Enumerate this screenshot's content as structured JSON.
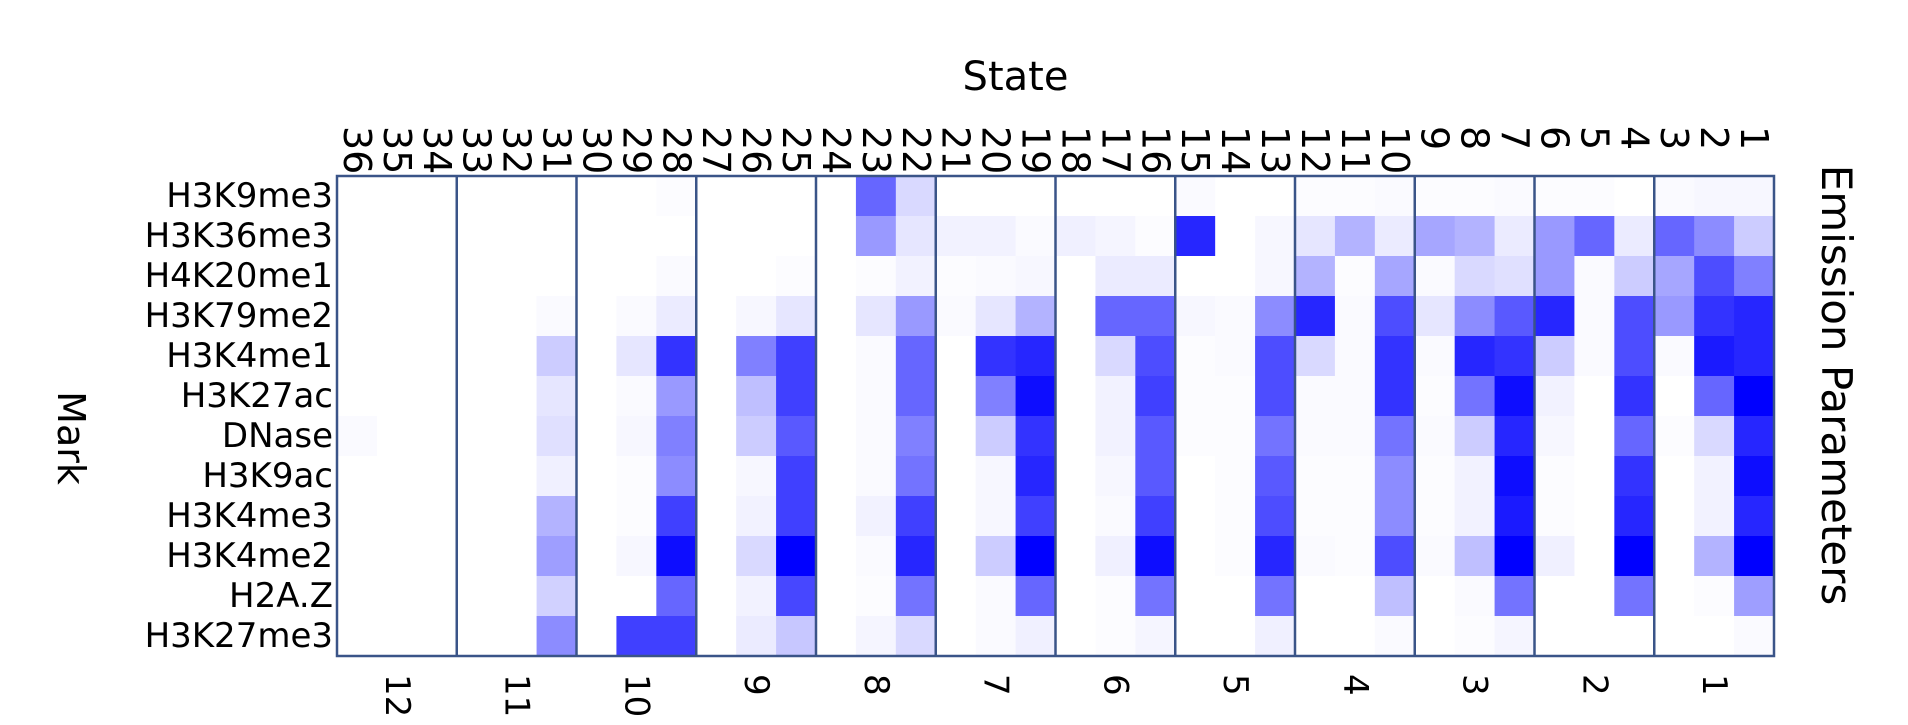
{
  "chart_data": {
    "type": "heatmap",
    "title": "Emission Parameters",
    "xlabel": "State",
    "ylabel": "Mark",
    "marks": [
      "H3K9me3",
      "H3K36me3",
      "H4K20me1",
      "H3K79me2",
      "H3K4me1",
      "H3K27ac",
      "DNase",
      "H3K9ac",
      "H3K4me3",
      "H3K4me2",
      "H2A.Z",
      "H3K27me3"
    ],
    "states": [
      36,
      35,
      34,
      33,
      32,
      31,
      30,
      29,
      28,
      27,
      26,
      25,
      24,
      23,
      22,
      21,
      20,
      19,
      18,
      17,
      16,
      15,
      14,
      13,
      12,
      11,
      10,
      9,
      8,
      7,
      6,
      5,
      4,
      3,
      2,
      1
    ],
    "groups": [
      {
        "label": "12",
        "states": [
          36,
          35,
          34
        ]
      },
      {
        "label": "11",
        "states": [
          33,
          32,
          31
        ]
      },
      {
        "label": "10",
        "states": [
          30,
          29,
          28
        ]
      },
      {
        "label": "9",
        "states": [
          27,
          26,
          25
        ]
      },
      {
        "label": "8",
        "states": [
          24,
          23,
          22
        ]
      },
      {
        "label": "7",
        "states": [
          21,
          20,
          19
        ]
      },
      {
        "label": "6",
        "states": [
          18,
          17,
          16
        ]
      },
      {
        "label": "5",
        "states": [
          15,
          14,
          13
        ]
      },
      {
        "label": "4",
        "states": [
          12,
          11,
          10
        ]
      },
      {
        "label": "3",
        "states": [
          9,
          8,
          7
        ]
      },
      {
        "label": "2",
        "states": [
          6,
          5,
          4
        ]
      },
      {
        "label": "1",
        "states": [
          3,
          2,
          1
        ]
      }
    ],
    "color_low": "#ffffff",
    "color_high": "#0000ff",
    "value_range": [
      0,
      1
    ],
    "values": [
      [
        0,
        0,
        0,
        0,
        0,
        0,
        0,
        0,
        0.01,
        0,
        0,
        0,
        0,
        0.6,
        0.15,
        0,
        0,
        0,
        0,
        0,
        0,
        0.02,
        0,
        0,
        0.01,
        0.01,
        0.02,
        0.01,
        0.01,
        0.02,
        0.01,
        0.01,
        0,
        0.02,
        0.03,
        0.03
      ],
      [
        0,
        0,
        0,
        0,
        0,
        0,
        0,
        0,
        0,
        0,
        0,
        0,
        0,
        0.4,
        0.1,
        0.05,
        0.05,
        0.02,
        0.06,
        0.04,
        0.01,
        0.85,
        0,
        0.03,
        0.1,
        0.3,
        0.08,
        0.35,
        0.3,
        0.08,
        0.4,
        0.6,
        0.08,
        0.6,
        0.45,
        0.2
      ],
      [
        0,
        0,
        0,
        0,
        0,
        0,
        0,
        0,
        0.02,
        0,
        0,
        0.01,
        0,
        0.01,
        0.05,
        0.01,
        0.02,
        0.03,
        0,
        0.08,
        0.08,
        0,
        0,
        0.03,
        0.3,
        0.01,
        0.35,
        0.02,
        0.15,
        0.12,
        0.4,
        0.02,
        0.2,
        0.35,
        0.7,
        0.5
      ],
      [
        0,
        0,
        0,
        0,
        0,
        0.02,
        0,
        0.02,
        0.08,
        0,
        0.03,
        0.1,
        0,
        0.1,
        0.4,
        0.02,
        0.1,
        0.3,
        0,
        0.6,
        0.6,
        0.03,
        0.02,
        0.45,
        0.85,
        0.02,
        0.7,
        0.1,
        0.45,
        0.65,
        0.85,
        0.02,
        0.7,
        0.4,
        0.8,
        0.85
      ],
      [
        0,
        0,
        0,
        0,
        0,
        0.2,
        0,
        0.1,
        0.8,
        0,
        0.5,
        0.75,
        0,
        0.02,
        0.6,
        0,
        0.8,
        0.85,
        0,
        0.15,
        0.7,
        0.01,
        0.02,
        0.7,
        0.15,
        0.02,
        0.8,
        0.02,
        0.85,
        0.8,
        0.2,
        0.02,
        0.7,
        0.02,
        0.9,
        0.85
      ],
      [
        0,
        0,
        0,
        0,
        0,
        0.1,
        0,
        0.02,
        0.4,
        0,
        0.25,
        0.75,
        0,
        0.02,
        0.6,
        0,
        0.5,
        0.95,
        0,
        0.05,
        0.75,
        0.01,
        0.01,
        0.7,
        0.02,
        0.02,
        0.8,
        0.01,
        0.55,
        0.95,
        0.05,
        0,
        0.8,
        0,
        0.6,
        1.0
      ],
      [
        0.02,
        0,
        0,
        0,
        0,
        0.12,
        0,
        0.03,
        0.5,
        0,
        0.2,
        0.65,
        0,
        0.02,
        0.5,
        0,
        0.2,
        0.8,
        0,
        0.05,
        0.65,
        0.01,
        0.01,
        0.55,
        0.02,
        0.02,
        0.55,
        0.02,
        0.2,
        0.85,
        0.03,
        0,
        0.6,
        0.01,
        0.15,
        0.85
      ],
      [
        0,
        0,
        0,
        0,
        0,
        0.06,
        0,
        0.01,
        0.45,
        0,
        0.03,
        0.75,
        0,
        0.02,
        0.55,
        0,
        0.03,
        0.85,
        0,
        0.03,
        0.65,
        0,
        0.01,
        0.65,
        0.01,
        0.01,
        0.45,
        0.01,
        0.05,
        0.95,
        0.01,
        0,
        0.8,
        0,
        0.05,
        0.95
      ],
      [
        0,
        0,
        0,
        0,
        0,
        0.3,
        0,
        0.01,
        0.75,
        0,
        0.05,
        0.75,
        0,
        0.05,
        0.75,
        0,
        0.03,
        0.75,
        0,
        0.02,
        0.75,
        0,
        0.01,
        0.7,
        0.01,
        0.01,
        0.45,
        0.01,
        0.05,
        0.9,
        0.01,
        0,
        0.85,
        0,
        0.05,
        0.85
      ],
      [
        0,
        0,
        0,
        0,
        0,
        0.38,
        0,
        0.03,
        0.95,
        0,
        0.15,
        1.0,
        0,
        0.02,
        0.85,
        0,
        0.2,
        1.0,
        0,
        0.06,
        0.95,
        0,
        0.01,
        0.85,
        0.02,
        0.01,
        0.7,
        0.02,
        0.25,
        1.0,
        0.06,
        0,
        1.0,
        0,
        0.3,
        1.0
      ],
      [
        0,
        0,
        0,
        0,
        0,
        0.18,
        0,
        0,
        0.6,
        0,
        0.05,
        0.72,
        0,
        0.01,
        0.55,
        0,
        0.02,
        0.6,
        0,
        0.01,
        0.55,
        0,
        0,
        0.55,
        0,
        0,
        0.25,
        0,
        0.02,
        0.55,
        0,
        0,
        0.55,
        0,
        0.01,
        0.38
      ],
      [
        0,
        0,
        0,
        0,
        0,
        0.45,
        0,
        0.75,
        0.75,
        0,
        0.08,
        0.22,
        0,
        0.04,
        0.15,
        0,
        0.02,
        0.06,
        0,
        0.01,
        0.04,
        0,
        0,
        0.06,
        0,
        0,
        0.02,
        0,
        0.01,
        0.04,
        0,
        0,
        0,
        0,
        0,
        0.02
      ]
    ]
  }
}
